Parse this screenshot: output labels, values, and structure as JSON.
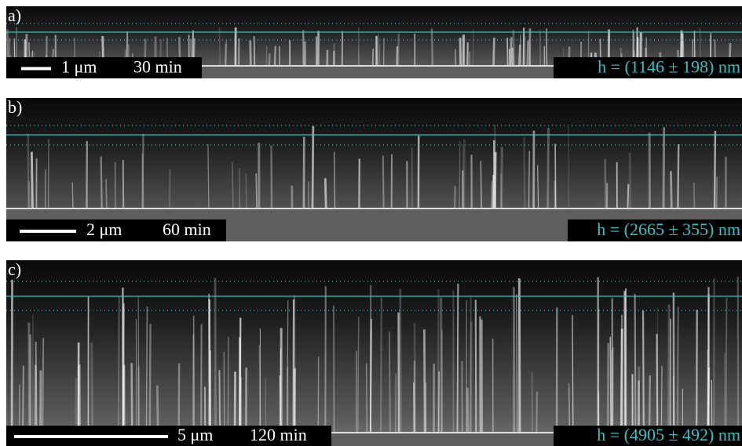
{
  "panels": [
    {
      "label": "a)",
      "scale_bar": "1 μm",
      "time": "30 min",
      "height": "h = (1146 ± 198) nm"
    },
    {
      "label": "b)",
      "scale_bar": "2 μm",
      "time": "60 min",
      "height": "h = (2665 ± 355) nm"
    },
    {
      "label": "c)",
      "scale_bar": "5 μm",
      "time": "120 min",
      "height": "h = (4905 ± 492) nm"
    }
  ]
}
